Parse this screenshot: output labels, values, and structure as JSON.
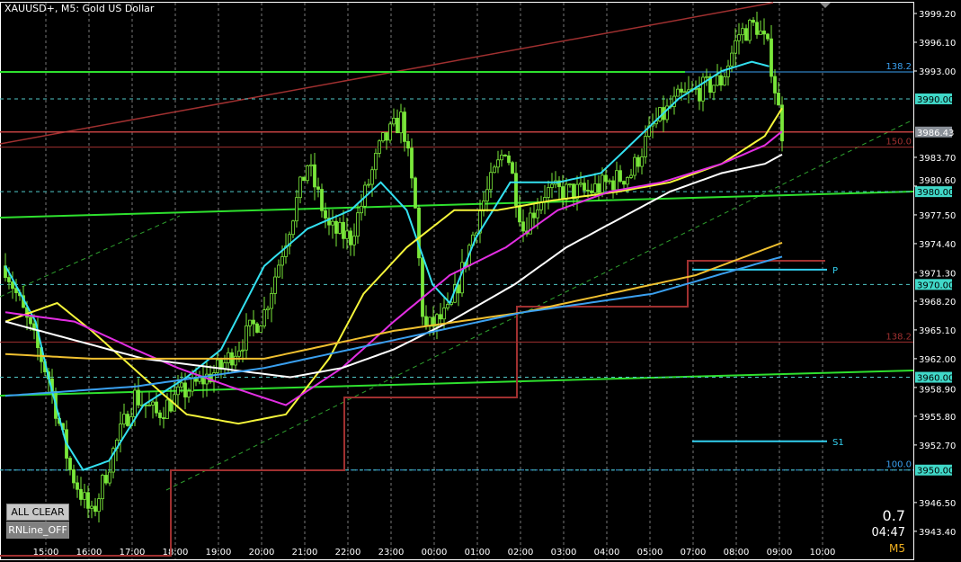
{
  "header": {
    "title": "XAUUSD+, M5:  Gold US Dollar"
  },
  "buttons": {
    "all_clear": "ALL CLEAR",
    "rnline": "RNLine_OFF"
  },
  "info": {
    "spread": "0.7",
    "timer": "04:47",
    "timeframe": "M5"
  },
  "chart_data": {
    "type": "candlestick",
    "title": "XAUUSD+, M5:  Gold US Dollar",
    "ylim": [
      3941.5,
      3999.5
    ],
    "y_ticks": [
      "3999.20",
      "3996.10",
      "3993.00",
      "3990.00",
      "3986.43",
      "3983.70",
      "3980.60",
      "3980.00",
      "3977.50",
      "3974.40",
      "3971.30",
      "3970.00",
      "3968.20",
      "3965.10",
      "3962.00",
      "3960.00",
      "3958.90",
      "3955.80",
      "3952.70",
      "3950.00",
      "3946.50",
      "3943.40"
    ],
    "x_ticks": [
      "15:00",
      "16:00",
      "17:00",
      "18:00",
      "19:00",
      "20:00",
      "21:00",
      "22:00",
      "23:00",
      "00:00",
      "01:00",
      "02:00",
      "03:00",
      "04:00",
      "05:00",
      "07:00",
      "08:00",
      "09:00",
      "10:00"
    ],
    "current_price": "3986.43",
    "price_path": [
      [
        0,
        3972
      ],
      [
        0.5,
        3966
      ],
      [
        1,
        3960
      ],
      [
        1.5,
        3950
      ],
      [
        2,
        3945
      ],
      [
        2.5,
        3952
      ],
      [
        3,
        3958
      ],
      [
        3.5,
        3956
      ],
      [
        4,
        3958
      ],
      [
        5,
        3961
      ],
      [
        6,
        3967
      ],
      [
        7,
        3983
      ],
      [
        7.5,
        3976
      ],
      [
        8,
        3975
      ],
      [
        8.7,
        3985
      ],
      [
        9.2,
        3988
      ],
      [
        9.5,
        3978
      ],
      [
        9.7,
        3965
      ],
      [
        10.3,
        3967
      ],
      [
        11,
        3978
      ],
      [
        11.6,
        3985
      ],
      [
        12,
        3976
      ],
      [
        12.5,
        3980
      ],
      [
        13.5,
        3980
      ],
      [
        14.5,
        3982
      ],
      [
        15,
        3987
      ],
      [
        15.6,
        3990
      ],
      [
        16.6,
        3992
      ],
      [
        17,
        3997
      ],
      [
        17.4,
        3998
      ],
      [
        17.7,
        3995
      ],
      [
        18,
        3986.43
      ]
    ],
    "series": [
      {
        "color": "#33e0f0",
        "points": [
          [
            0,
            3972
          ],
          [
            0.7,
            3966
          ],
          [
            1,
            3960
          ],
          [
            1.4,
            3953
          ],
          [
            1.8,
            3950
          ],
          [
            2.4,
            3951
          ],
          [
            3.2,
            3957
          ],
          [
            4.2,
            3960
          ],
          [
            5,
            3963
          ],
          [
            6,
            3972
          ],
          [
            7,
            3976
          ],
          [
            8,
            3978
          ],
          [
            8.7,
            3981
          ],
          [
            9.3,
            3978
          ],
          [
            9.9,
            3970
          ],
          [
            10.3,
            3968
          ],
          [
            10.9,
            3975
          ],
          [
            11.7,
            3981
          ],
          [
            12.8,
            3981
          ],
          [
            13.8,
            3982
          ],
          [
            14.7,
            3986
          ],
          [
            15.6,
            3990
          ],
          [
            16.6,
            3993
          ],
          [
            17.3,
            3994
          ],
          [
            17.7,
            3993.5
          ]
        ]
      },
      {
        "color": "#f5f53a",
        "points": [
          [
            0,
            3966
          ],
          [
            1.2,
            3968
          ],
          [
            2,
            3965
          ],
          [
            3.2,
            3960
          ],
          [
            4.2,
            3956
          ],
          [
            5.4,
            3955
          ],
          [
            6.5,
            3956
          ],
          [
            7.5,
            3962
          ],
          [
            8.3,
            3969
          ],
          [
            9.3,
            3974
          ],
          [
            10.4,
            3978
          ],
          [
            11.4,
            3978
          ],
          [
            12.6,
            3979
          ],
          [
            14.2,
            3980
          ],
          [
            15.4,
            3981
          ],
          [
            16.6,
            3983
          ],
          [
            17.6,
            3986
          ],
          [
            18,
            3989
          ]
        ]
      },
      {
        "color": "#e22ee2",
        "points": [
          [
            0,
            3967
          ],
          [
            1.6,
            3966
          ],
          [
            3,
            3963
          ],
          [
            4,
            3961
          ],
          [
            5.2,
            3959
          ],
          [
            6.5,
            3957
          ],
          [
            7.8,
            3961
          ],
          [
            9,
            3966
          ],
          [
            10.3,
            3971
          ],
          [
            11.6,
            3974
          ],
          [
            12.8,
            3978
          ],
          [
            14,
            3980
          ],
          [
            15.2,
            3981
          ],
          [
            16.6,
            3983
          ],
          [
            17.6,
            3985
          ],
          [
            18,
            3986.5
          ]
        ]
      },
      {
        "color": "#ffffff",
        "points": [
          [
            0,
            3966
          ],
          [
            1.6,
            3964
          ],
          [
            3.2,
            3962
          ],
          [
            4.9,
            3961
          ],
          [
            6.6,
            3960
          ],
          [
            7.8,
            3961
          ],
          [
            9,
            3963
          ],
          [
            10.3,
            3966
          ],
          [
            11.8,
            3970
          ],
          [
            13,
            3974
          ],
          [
            14.2,
            3977
          ],
          [
            15.4,
            3980
          ],
          [
            16.6,
            3982
          ],
          [
            17.6,
            3983
          ],
          [
            18,
            3984
          ]
        ]
      },
      {
        "color": "#f0c030",
        "points": [
          [
            0,
            3962.5
          ],
          [
            2,
            3962
          ],
          [
            6,
            3962
          ],
          [
            9,
            3965
          ],
          [
            12,
            3967
          ],
          [
            14,
            3969
          ],
          [
            16,
            3971
          ],
          [
            18,
            3974.5
          ]
        ]
      },
      {
        "color": "#3aa0f0",
        "points": [
          [
            0,
            3958
          ],
          [
            3,
            3959
          ],
          [
            6,
            3961
          ],
          [
            9,
            3964
          ],
          [
            12,
            3967
          ],
          [
            15,
            3969
          ],
          [
            18,
            3973
          ]
        ]
      }
    ],
    "levels": [
      {
        "label": "138.2",
        "price": 3992.9,
        "color": "#3aa0f0"
      },
      {
        "label": "150.0",
        "price": 3984.8,
        "color": "#a03030"
      },
      {
        "label": "138.2",
        "price": 3963.8,
        "color": "#a03030"
      },
      {
        "label": "100.0",
        "price": 3950.0,
        "color": "#3aa0f0"
      }
    ],
    "round_levels": [
      "3990.00",
      "3980.00",
      "3970.00",
      "3960.00",
      "3950.00"
    ],
    "pivots": [
      {
        "label": "P",
        "price": 3971.6
      },
      {
        "label": "S1",
        "price": 3953.1
      }
    ]
  }
}
